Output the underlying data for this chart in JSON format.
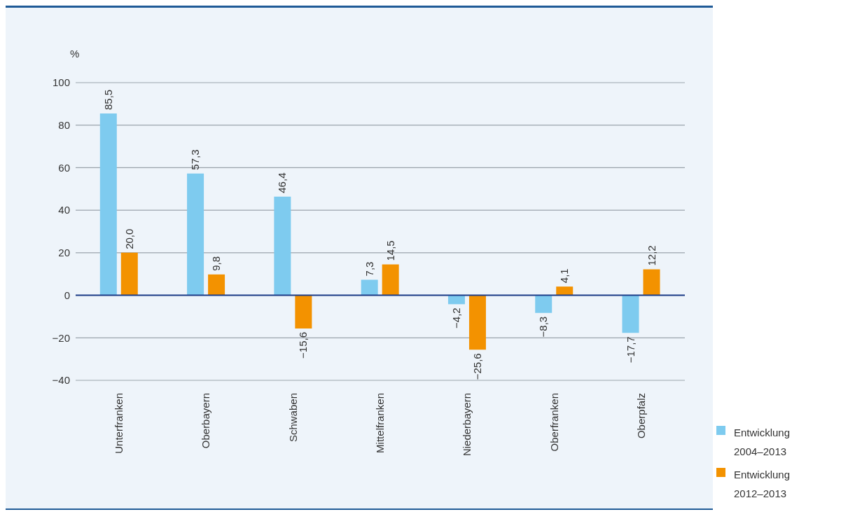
{
  "chart_data": {
    "type": "bar",
    "ylabel": "%",
    "categories": [
      "Unterfranken",
      "Oberbayern",
      "Schwaben",
      "Mittelfranken",
      "Niederbayern",
      "Oberfranken",
      "Oberpfalz"
    ],
    "series": [
      {
        "name": "Entwicklung 2004–2013",
        "color": "#7ecbef",
        "values": [
          85.5,
          57.3,
          46.4,
          7.3,
          -4.2,
          -8.3,
          -17.7
        ],
        "value_labels": [
          "85,5",
          "57,3",
          "46,4",
          "7,3",
          "−4,2",
          "−8,3",
          "−17,7"
        ]
      },
      {
        "name": "Entwicklung 2012–2013",
        "color": "#f39200",
        "values": [
          20.0,
          9.8,
          -15.6,
          14.5,
          -25.6,
          4.1,
          12.2
        ],
        "value_labels": [
          "20,0",
          "9,8",
          "−15,6",
          "14,5",
          "−25,6",
          "4,1",
          "12,2"
        ]
      }
    ],
    "ylim": [
      -40,
      100
    ],
    "yticks": [
      {
        "value": -40,
        "label": "−40"
      },
      {
        "value": -20,
        "label": "−20"
      },
      0,
      20,
      40,
      60,
      80,
      100
    ],
    "ref_lines": [
      {
        "axis": "y",
        "value": 0,
        "color": "#1f3f8a"
      }
    ],
    "grid": "y",
    "legend": "bottom right"
  }
}
